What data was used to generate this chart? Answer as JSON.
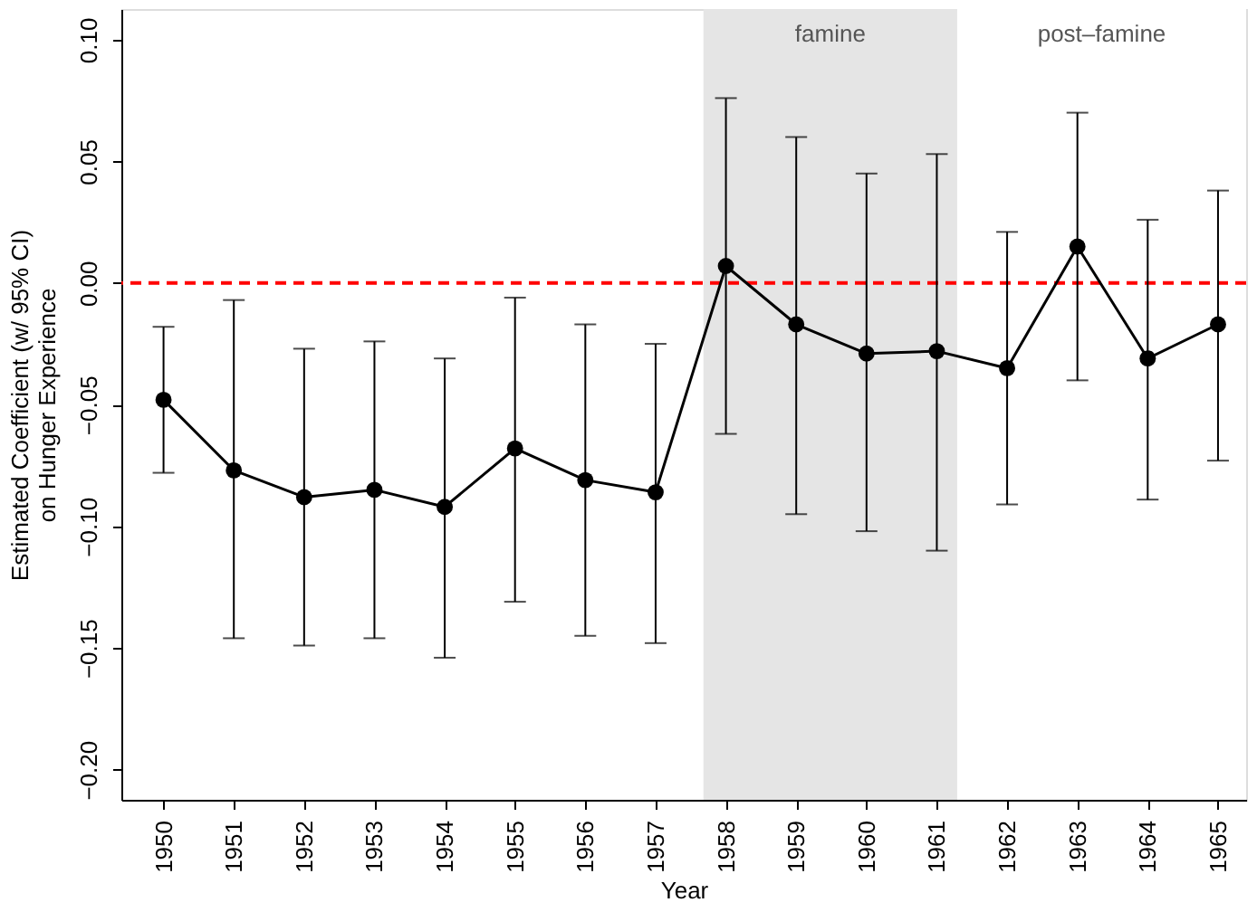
{
  "chart_data": {
    "type": "line",
    "xlabel": "Year",
    "ylabel": "Estimated Coefficient (w/ 95% CI)\non Hunger Experience",
    "x": [
      1950,
      1951,
      1952,
      1953,
      1954,
      1955,
      1956,
      1957,
      1958,
      1959,
      1960,
      1961,
      1962,
      1963,
      1964,
      1965
    ],
    "series": [
      {
        "color": "#000000",
        "values": [
          -0.048,
          -0.077,
          -0.088,
          -0.085,
          -0.092,
          -0.068,
          -0.081,
          -0.086,
          0.007,
          -0.017,
          -0.029,
          -0.028,
          -0.035,
          0.015,
          -0.031,
          -0.017
        ],
        "errors": [
          [
            -0.078,
            -0.018
          ],
          [
            -0.146,
            -0.007
          ],
          [
            -0.149,
            -0.027
          ],
          [
            -0.146,
            -0.024
          ],
          [
            -0.154,
            -0.031
          ],
          [
            -0.131,
            -0.006
          ],
          [
            -0.145,
            -0.017
          ],
          [
            -0.148,
            -0.025
          ],
          [
            -0.062,
            0.076
          ],
          [
            -0.095,
            0.06
          ],
          [
            -0.102,
            0.045
          ],
          [
            -0.11,
            0.053
          ],
          [
            -0.091,
            0.021
          ],
          [
            -0.04,
            0.07
          ],
          [
            -0.089,
            0.026
          ],
          [
            -0.073,
            0.038
          ]
        ]
      }
    ],
    "marker": "circle",
    "line_style": "solid",
    "xlim": [
      1949.4,
      1965.4
    ],
    "xticks": [
      1950,
      1951,
      1952,
      1953,
      1954,
      1955,
      1956,
      1957,
      1958,
      1959,
      1960,
      1961,
      1962,
      1963,
      1964,
      1965
    ],
    "ylim": [
      -0.2124,
      0.1126
    ],
    "yticks": [
      {
        "value": -0.2,
        "label": "−0.20"
      },
      {
        "value": -0.15,
        "label": "−0.15"
      },
      {
        "value": -0.1,
        "label": "−0.10"
      },
      {
        "value": -0.05,
        "label": "−0.05"
      },
      {
        "value": 0,
        "label": "0.00"
      },
      {
        "value": 0.05,
        "label": "0.05"
      },
      {
        "value": 0.1,
        "label": "0.10"
      }
    ],
    "ref_lines": [
      {
        "axis": "y",
        "value": 0,
        "color": "#ff0000",
        "line_style": "dashed"
      }
    ],
    "bands": [
      {
        "axis": "x",
        "from": 1957.68,
        "to": 1961.29,
        "label": "famine",
        "color": "#e5e5e5"
      },
      {
        "axis": "x",
        "from": 1961.29,
        "to": 1965.4,
        "label": "post–famine",
        "color": "#ffffff"
      }
    ],
    "grid": false,
    "legend": false
  }
}
